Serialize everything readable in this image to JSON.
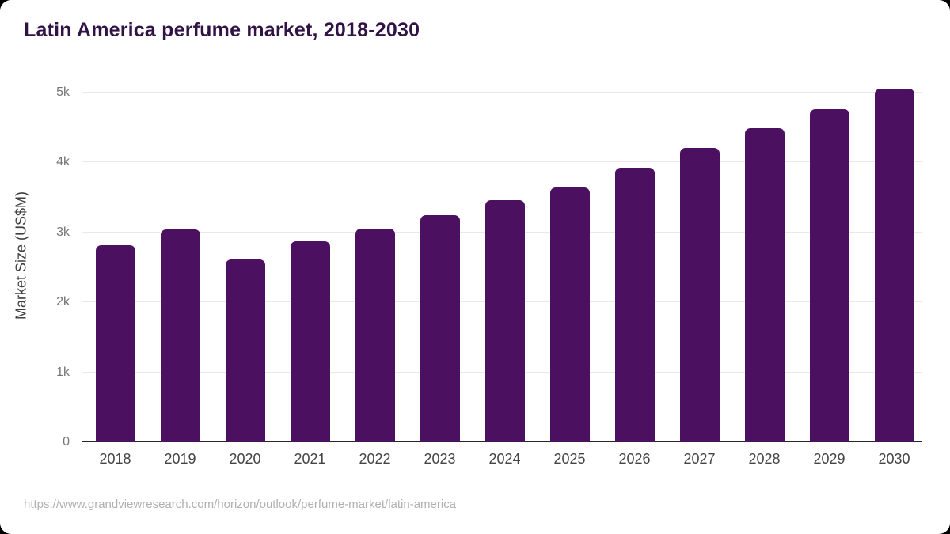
{
  "chart_data": {
    "type": "bar",
    "title": "Latin America perfume market, 2018-2030",
    "xlabel": "",
    "ylabel": "Market Size (US$M)",
    "categories": [
      "2018",
      "2019",
      "2020",
      "2021",
      "2022",
      "2023",
      "2024",
      "2025",
      "2026",
      "2027",
      "2028",
      "2029",
      "2030"
    ],
    "values": [
      2810,
      3040,
      2610,
      2870,
      3050,
      3240,
      3460,
      3640,
      3920,
      4200,
      4490,
      4760,
      5050
    ],
    "ylim": [
      0,
      5300
    ],
    "ytick_values": [
      0,
      1000,
      2000,
      3000,
      4000,
      5000
    ],
    "ytick_labels": [
      "0",
      "1k",
      "2k",
      "3k",
      "4k",
      "5k"
    ],
    "grid": true,
    "legend": false,
    "bar_color": "#4b1160",
    "title_color": "#301245",
    "source": "https://www.grandviewresearch.com/horizon/outlook/perfume-market/latin-america"
  }
}
